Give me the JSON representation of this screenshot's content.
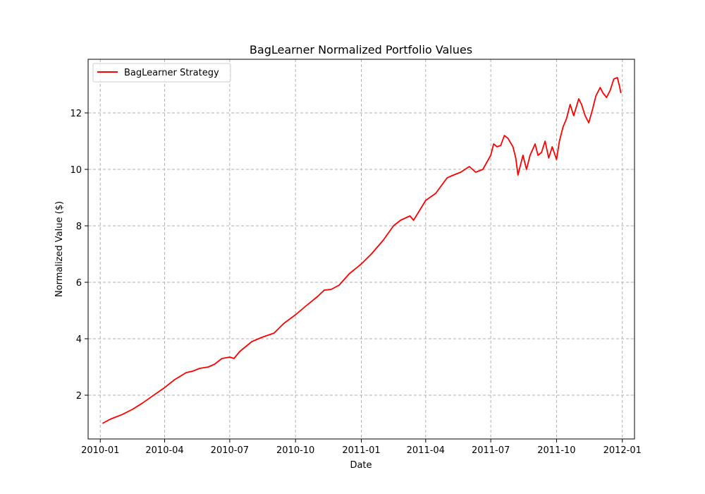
{
  "chart_data": {
    "type": "line",
    "title": "BagLearner Normalized Portfolio Values",
    "xlabel": "Date",
    "ylabel": "Normalized Value ($)",
    "x_range": [
      "2009-12-15",
      "2012-01-18"
    ],
    "ylim": [
      0.45,
      13.9
    ],
    "x_ticks": [
      "2010-01-01",
      "2010-04-01",
      "2010-07-01",
      "2010-10-01",
      "2011-01-01",
      "2011-04-01",
      "2011-07-01",
      "2011-10-01",
      "2012-01-01"
    ],
    "x_tick_labels": [
      "2010-01",
      "2010-04",
      "2010-07",
      "2010-10",
      "2011-01",
      "2011-04",
      "2011-07",
      "2011-10",
      "2012-01"
    ],
    "y_ticks": [
      2,
      4,
      6,
      8,
      10,
      12
    ],
    "grid": true,
    "legend_position": "top-left",
    "series": [
      {
        "name": "BagLearner Strategy",
        "color": "#ff0000",
        "x": [
          "2010-01-04",
          "2010-01-15",
          "2010-02-01",
          "2010-02-15",
          "2010-03-01",
          "2010-03-15",
          "2010-04-01",
          "2010-04-15",
          "2010-05-01",
          "2010-05-10",
          "2010-05-20",
          "2010-06-01",
          "2010-06-10",
          "2010-06-20",
          "2010-07-01",
          "2010-07-07",
          "2010-07-15",
          "2010-08-01",
          "2010-08-15",
          "2010-09-01",
          "2010-09-15",
          "2010-10-01",
          "2010-10-15",
          "2010-11-01",
          "2010-11-10",
          "2010-11-20",
          "2010-12-01",
          "2010-12-15",
          "2011-01-01",
          "2011-01-15",
          "2011-02-01",
          "2011-02-15",
          "2011-02-25",
          "2011-03-10",
          "2011-03-15",
          "2011-03-20",
          "2011-04-01",
          "2011-04-15",
          "2011-05-01",
          "2011-05-10",
          "2011-05-20",
          "2011-06-01",
          "2011-06-10",
          "2011-06-20",
          "2011-07-01",
          "2011-07-05",
          "2011-07-10",
          "2011-07-15",
          "2011-07-20",
          "2011-07-25",
          "2011-08-01",
          "2011-08-05",
          "2011-08-08",
          "2011-08-10",
          "2011-08-15",
          "2011-08-20",
          "2011-08-25",
          "2011-09-01",
          "2011-09-05",
          "2011-09-10",
          "2011-09-15",
          "2011-09-20",
          "2011-09-25",
          "2011-10-01",
          "2011-10-05",
          "2011-10-10",
          "2011-10-15",
          "2011-10-20",
          "2011-10-25",
          "2011-11-01",
          "2011-11-05",
          "2011-11-10",
          "2011-11-15",
          "2011-11-20",
          "2011-11-25",
          "2011-12-01",
          "2011-12-05",
          "2011-12-10",
          "2011-12-15",
          "2011-12-20",
          "2011-12-25",
          "2011-12-28",
          "2011-12-30"
        ],
        "y": [
          1.0,
          1.15,
          1.32,
          1.5,
          1.72,
          1.97,
          2.27,
          2.55,
          2.8,
          2.85,
          2.95,
          3.0,
          3.1,
          3.3,
          3.35,
          3.3,
          3.55,
          3.9,
          4.05,
          4.2,
          4.55,
          4.85,
          5.15,
          5.5,
          5.72,
          5.75,
          5.9,
          6.3,
          6.65,
          7.0,
          7.5,
          8.0,
          8.2,
          8.35,
          8.2,
          8.4,
          8.9,
          9.15,
          9.7,
          9.8,
          9.9,
          10.1,
          9.9,
          10.0,
          10.5,
          10.9,
          10.8,
          10.85,
          11.2,
          11.1,
          10.8,
          10.4,
          9.8,
          10.0,
          10.5,
          10.0,
          10.5,
          10.9,
          10.5,
          10.6,
          11.0,
          10.4,
          10.8,
          10.35,
          11.0,
          11.5,
          11.8,
          12.3,
          11.9,
          12.5,
          12.3,
          11.9,
          11.65,
          12.1,
          12.6,
          12.9,
          12.7,
          12.55,
          12.8,
          13.2,
          13.25,
          12.95,
          12.7
        ]
      }
    ]
  }
}
